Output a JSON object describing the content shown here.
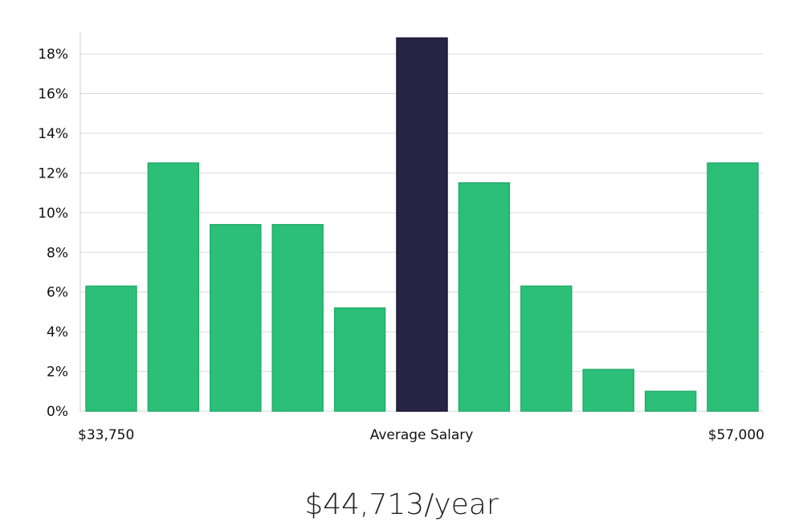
{
  "chart_data": {
    "type": "bar",
    "title": "",
    "xlabel": "Average Salary",
    "ylabel": "",
    "x_start_label": "$33,750",
    "x_end_label": "$57,000",
    "ylim": [
      0,
      19.5
    ],
    "yticks": [
      "0%",
      "2%",
      "4%",
      "6%",
      "8%",
      "10%",
      "12%",
      "14%",
      "16%",
      "18%"
    ],
    "ytick_values": [
      0,
      2,
      4,
      6,
      8,
      10,
      12,
      14,
      16,
      18
    ],
    "values": [
      6.3,
      12.5,
      9.4,
      9.4,
      5.2,
      18.8,
      11.5,
      6.3,
      2.1,
      1.0,
      12.5
    ],
    "highlight_index": 5,
    "grid": true,
    "colors": {
      "bar": "#2bbf78",
      "bar_edge": "#25ad6b",
      "highlight": "#282446",
      "highlight_edge": "#1a1733",
      "grid": "#d9d9d9",
      "axis": "#cccccc"
    }
  },
  "summary": {
    "average_salary": "$44,713/year"
  }
}
